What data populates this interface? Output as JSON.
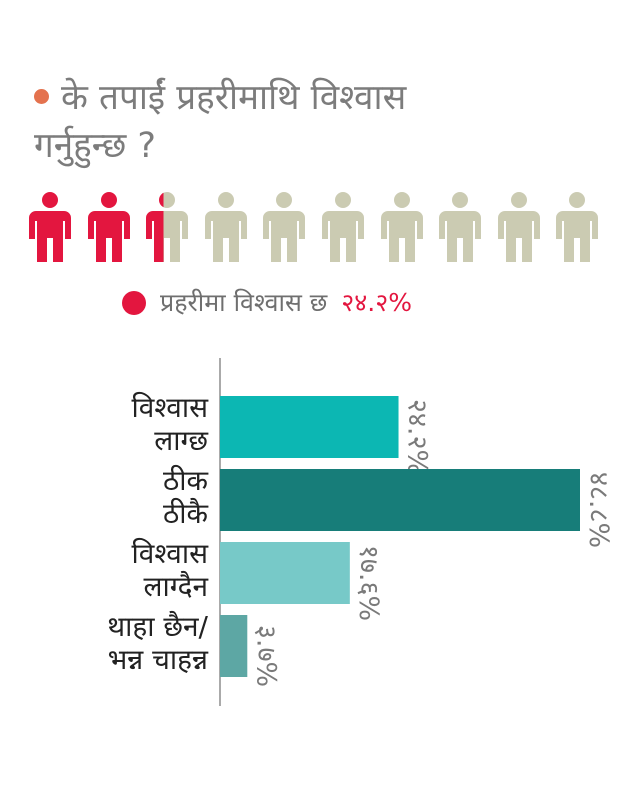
{
  "title": {
    "lines": [
      "के तपाईं प्रहरीमाथि विश्वास",
      "गर्नुहुन्छ ?"
    ],
    "dot_color": "#e4724e"
  },
  "icon_array": {
    "icon": "person-icon",
    "total": 10,
    "filled_fraction": 0.242,
    "filled_color": "#e3163f",
    "empty_color": "#cbcbb2"
  },
  "legend": {
    "text": "प्रहरीमा विश्वास छ",
    "value": "२४.२%",
    "dot_color": "#e3163f",
    "value_color": "#e3163f"
  },
  "chart_data": {
    "type": "bar",
    "orientation": "horizontal",
    "categories": [
      [
        "विश्वास",
        "लाग्छ"
      ],
      [
        "ठीक",
        "ठीकै"
      ],
      [
        "विश्वास",
        "लाग्दैन"
      ],
      [
        "थाहा छैन/",
        "भन्न चाहन्न"
      ]
    ],
    "values": [
      24.2,
      48.8,
      17.6,
      3.7
    ],
    "value_labels": [
      "२४.२%",
      "४८.८%",
      "१७.६%",
      "३.७%"
    ],
    "colors": [
      "#0cb7b3",
      "#177d79",
      "#77c9c8",
      "#5da7a4"
    ],
    "xlim": [
      0,
      48.8
    ],
    "title": "",
    "xlabel": "",
    "ylabel": "",
    "grid": false
  }
}
